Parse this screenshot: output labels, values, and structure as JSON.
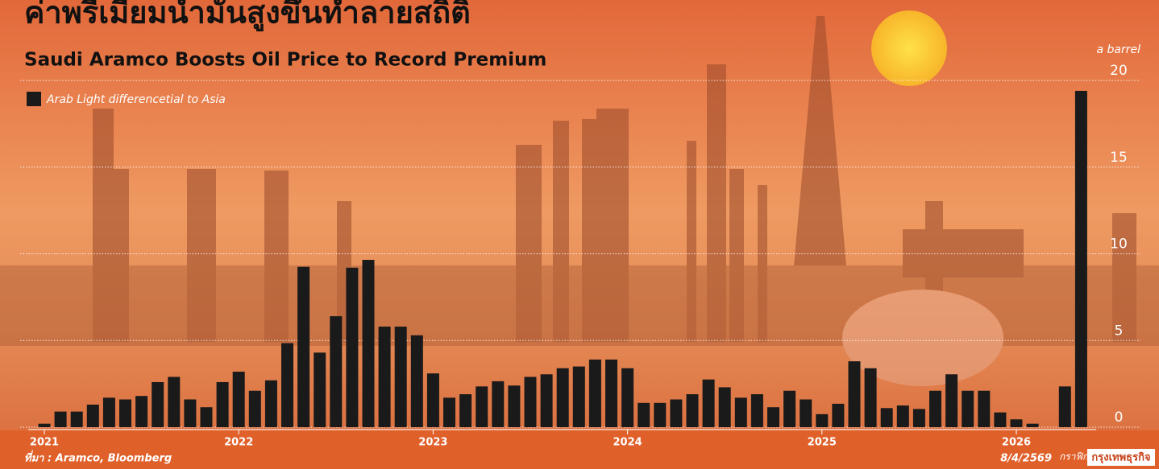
{
  "title": "ค่าพรีเมียมน้ำมันสูงขึ้นทำลายสถิติ",
  "chart_data": {
    "type": "bar",
    "subtitle": "Saudi Aramco Boosts Oil Price to Record Premium",
    "y_label": "a barrel",
    "categories": [
      "2021",
      null,
      null,
      null,
      null,
      null,
      null,
      null,
      null,
      null,
      null,
      null,
      "2022",
      null,
      null,
      null,
      null,
      null,
      null,
      null,
      null,
      null,
      null,
      null,
      "2023",
      null,
      null,
      null,
      null,
      null,
      null,
      null,
      null,
      null,
      null,
      null,
      "2024",
      null,
      null,
      null,
      null,
      null,
      null,
      null,
      null,
      null,
      null,
      null,
      "2025",
      null,
      null,
      null,
      null,
      null,
      null,
      null,
      null,
      null,
      null,
      null,
      "2026",
      null,
      null,
      null,
      null
    ],
    "series": [
      {
        "name": "Arab Light differencetial to Asia",
        "color": "#1a1a1a",
        "values": [
          0.2,
          0.9,
          0.9,
          1.3,
          1.7,
          1.6,
          1.8,
          2.6,
          2.9,
          1.6,
          1.15,
          2.6,
          3.2,
          2.1,
          2.7,
          4.85,
          9.25,
          4.3,
          6.4,
          9.2,
          9.65,
          5.8,
          5.8,
          5.3,
          3.1,
          1.7,
          1.9,
          2.35,
          2.65,
          2.4,
          2.9,
          3.05,
          3.4,
          3.5,
          3.9,
          3.9,
          3.4,
          1.4,
          1.4,
          1.6,
          1.9,
          2.75,
          2.3,
          1.7,
          1.9,
          1.15,
          2.1,
          1.6,
          0.75,
          1.35,
          3.8,
          3.4,
          1.1,
          1.25,
          1.05,
          2.1,
          3.05,
          2.1,
          2.1,
          0.85,
          0.45,
          0.2,
          null,
          2.35,
          19.4
        ]
      }
    ],
    "ylim": [
      0,
      20
    ],
    "yticks": [
      0,
      5,
      10,
      15,
      20
    ],
    "grid": true
  },
  "source": "ที่มา : Aramco, Bloomberg",
  "date": "8/4/2569",
  "credit": {
    "tag": "กราฟิก",
    "brand": "กรุงเทพธุรกิจ"
  }
}
